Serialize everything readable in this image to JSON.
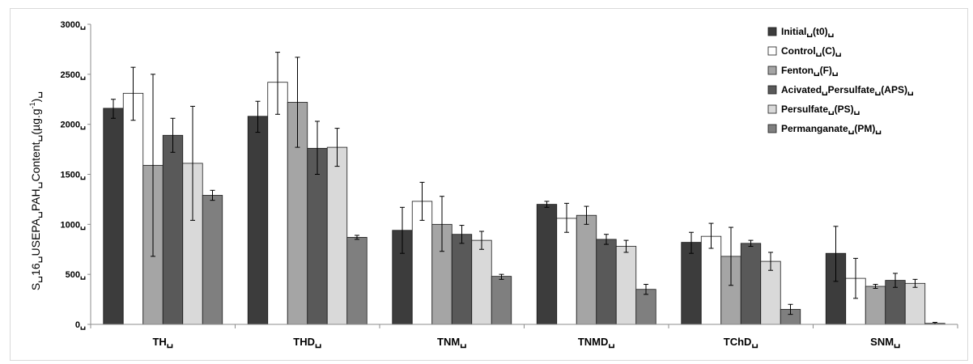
{
  "chart_data": {
    "type": "bar",
    "ylabel": "S␣16␣USEPA␣PAH␣Content␣(µg.g",
    "ylabel_sup": "-1",
    "ylabel_end": ")␣",
    "ylim": [
      0,
      3000
    ],
    "yticks": [
      "0␣",
      "500␣",
      "1000␣",
      "1500␣",
      "2000␣",
      "2500␣",
      "3000␣"
    ],
    "categories": [
      "TH␣",
      "THD␣",
      "TNM␣",
      "TNMD␣",
      "TChD␣",
      "SNM␣"
    ],
    "legend_position": "top-right",
    "grid": false,
    "series": [
      {
        "name": "Initial␣(t0)␣",
        "color": "#3c3c3c",
        "values": [
          2160,
          2080,
          940,
          1200,
          820,
          710
        ],
        "err_low": [
          2060,
          1920,
          710,
          1170,
          710,
          430
        ],
        "err_high": [
          2250,
          2230,
          1170,
          1230,
          920,
          980
        ]
      },
      {
        "name": "Control␣(C)␣",
        "color": "#ffffff",
        "values": [
          2310,
          2420,
          1230,
          1060,
          880,
          460
        ],
        "err_low": [
          2040,
          2100,
          1040,
          920,
          760,
          260
        ],
        "err_high": [
          2570,
          2720,
          1420,
          1210,
          1010,
          660
        ]
      },
      {
        "name": "Fenton␣(F)␣",
        "color": "#a5a5a5",
        "values": [
          1590,
          2220,
          1000,
          1090,
          680,
          380
        ],
        "err_low": [
          680,
          1770,
          730,
          1000,
          390,
          360
        ],
        "err_high": [
          2500,
          2670,
          1280,
          1180,
          970,
          400
        ]
      },
      {
        "name": "Acivated␣Persulfate␣(APS)␣",
        "color": "#595959",
        "values": [
          1890,
          1760,
          900,
          850,
          810,
          440
        ],
        "err_low": [
          1720,
          1500,
          810,
          800,
          780,
          370
        ],
        "err_high": [
          2060,
          2030,
          990,
          900,
          840,
          510
        ]
      },
      {
        "name": "Persulfate␣(PS)␣",
        "color": "#d9d9d9",
        "values": [
          1610,
          1770,
          840,
          780,
          630,
          410
        ],
        "err_low": [
          1040,
          1580,
          750,
          720,
          540,
          370
        ],
        "err_high": [
          2180,
          1960,
          930,
          840,
          720,
          450
        ]
      },
      {
        "name": "Permanganate␣(PM)␣",
        "color": "#7f7f7f",
        "values": [
          1290,
          870,
          480,
          350,
          150,
          10
        ],
        "err_low": [
          1240,
          850,
          450,
          300,
          100,
          0
        ],
        "err_high": [
          1340,
          890,
          500,
          400,
          200,
          20
        ]
      }
    ]
  }
}
